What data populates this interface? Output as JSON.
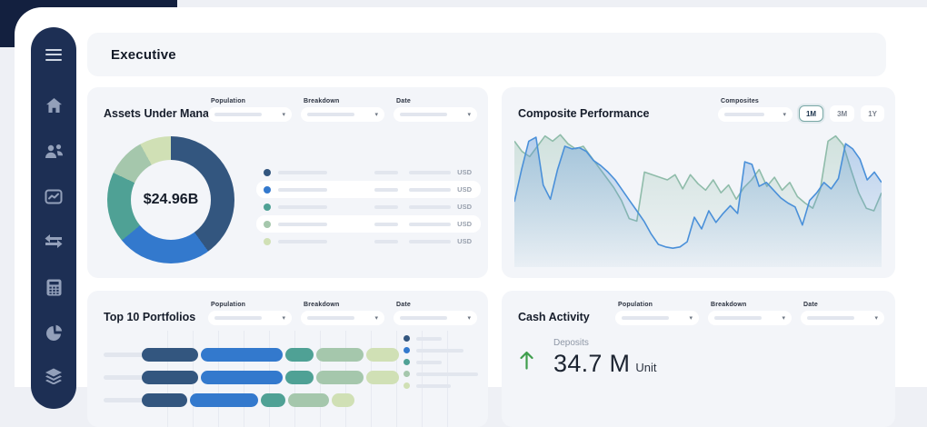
{
  "app": {
    "header_title": "Executive"
  },
  "colors": {
    "sidebar_bg": "#1d2f54",
    "backdrop_dark": "#13203f",
    "card_bg": "#f3f5f9",
    "palette": [
      "#33567f",
      "#3379cd",
      "#4fa195",
      "#a5c7ac",
      "#d0e0b5"
    ],
    "line_blue": "#4a90d9",
    "line_green": "#8fbcaa",
    "positive_green": "#3f9e4d"
  },
  "sidebar": {
    "icons": [
      "menu",
      "home",
      "clients",
      "performance",
      "transactions",
      "calculator",
      "allocation",
      "layers"
    ]
  },
  "cards": {
    "aum": {
      "title": "Assets Under Management",
      "filters": [
        "Population",
        "Breakdown",
        "Date"
      ],
      "center_value": "$24.96B",
      "legend_rows": [
        {
          "currency": "USD"
        },
        {
          "currency": "USD"
        },
        {
          "currency": "USD"
        },
        {
          "currency": "USD"
        },
        {
          "currency": "USD"
        }
      ]
    },
    "composite": {
      "title": "Composite Performance",
      "filter_label": "Composites",
      "ranges": [
        "1M",
        "3M",
        "1Y"
      ],
      "selected_range": "1M"
    },
    "portfolios": {
      "title": "Top 10 Portfolios",
      "filters": [
        "Population",
        "Breakdown",
        "Date"
      ]
    },
    "cash": {
      "title": "Cash Activity",
      "filters": [
        "Population",
        "Breakdown",
        "Date"
      ],
      "metric": {
        "label": "Deposits",
        "value": "34.7 M",
        "unit": "Unit",
        "direction": "up"
      }
    }
  },
  "chart_data": [
    {
      "type": "pie",
      "card": "aum",
      "title": "Assets Under Management",
      "center_label": "$24.96B",
      "slices": [
        {
          "pct": 40,
          "color": "#33567f"
        },
        {
          "pct": 24,
          "color": "#3379cd"
        },
        {
          "pct": 18,
          "color": "#4fa195"
        },
        {
          "pct": 10,
          "color": "#a5c7ac"
        },
        {
          "pct": 8,
          "color": "#d0e0b5"
        }
      ],
      "legend_note": "5 rows, labels/values shown as skeleton placeholder bars, currency USD"
    },
    {
      "type": "area",
      "card": "composite",
      "title": "Composite Performance",
      "axes": "hidden",
      "ylim": [
        0,
        100
      ],
      "range_selected": "1M",
      "series": [
        {
          "name": "composite-blue",
          "color": "#4a90d9",
          "values": [
            45,
            70,
            92,
            95,
            58,
            47,
            70,
            88,
            86,
            87,
            84,
            77,
            73,
            68,
            62,
            54,
            46,
            38,
            30,
            20,
            12,
            10,
            9,
            10,
            14,
            33,
            24,
            38,
            29,
            36,
            42,
            36,
            76,
            74,
            57,
            60,
            54,
            48,
            44,
            41,
            27,
            46,
            52,
            60,
            55,
            63,
            90,
            86,
            78,
            62,
            68,
            60
          ]
        },
        {
          "name": "composite-green",
          "color": "#8fbcaa",
          "values": [
            92,
            84,
            80,
            88,
            96,
            92,
            97,
            90,
            86,
            88,
            80,
            72,
            64,
            56,
            46,
            32,
            30,
            68,
            66,
            64,
            62,
            66,
            55,
            66,
            59,
            54,
            62,
            52,
            58,
            47,
            56,
            62,
            70,
            57,
            64,
            54,
            60,
            49,
            44,
            40,
            55,
            92,
            96,
            89,
            70,
            52,
            40,
            38,
            52
          ]
        }
      ]
    },
    {
      "type": "bar",
      "card": "portfolios",
      "title": "Top 10 Portfolios",
      "orientation": "horizontal",
      "stacked": true,
      "colors": [
        "#33567f",
        "#3379cd",
        "#4fa195",
        "#a5c7ac",
        "#d0e0b5"
      ],
      "rows": [
        {
          "segments": [
            62,
            90,
            31,
            52,
            36
          ]
        },
        {
          "segments": [
            62,
            90,
            31,
            52,
            36
          ]
        },
        {
          "segments": [
            50,
            75,
            27,
            45,
            25
          ]
        }
      ],
      "legend_bar_widths": [
        28,
        52,
        28,
        68,
        38
      ],
      "note": "row labels and legend labels are skeleton placeholders; chart clipped at viewport bottom"
    }
  ]
}
